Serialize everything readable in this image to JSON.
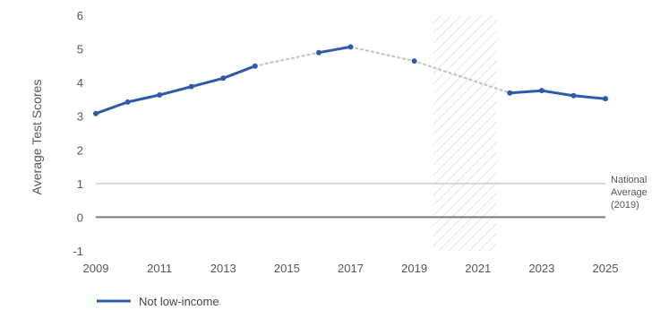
{
  "chart_data": {
    "type": "line",
    "ylabel": "Average Test Scores",
    "xlim": [
      2009,
      2025
    ],
    "ylim": [
      -1,
      6
    ],
    "x_ticks": [
      "2009",
      "2011",
      "2013",
      "2015",
      "2017",
      "2019",
      "2021",
      "2023",
      "2025"
    ],
    "y_ticks": [
      "6",
      "5",
      "4",
      "3",
      "2",
      "1",
      "0",
      "-1"
    ],
    "grid": false,
    "legend_position": "bottom-left",
    "series": [
      {
        "name": "Not low-income",
        "color": "#2e5aa8",
        "points": [
          {
            "x": 2009,
            "y": 3.08
          },
          {
            "x": 2010,
            "y": 3.42
          },
          {
            "x": 2011,
            "y": 3.63
          },
          {
            "x": 2012,
            "y": 3.88
          },
          {
            "x": 2013,
            "y": 4.13
          },
          {
            "x": 2014,
            "y": 4.49
          },
          {
            "x": 2016,
            "y": 4.89
          },
          {
            "x": 2017,
            "y": 5.06
          },
          {
            "x": 2019,
            "y": 4.64
          },
          {
            "x": 2022,
            "y": 3.69
          },
          {
            "x": 2023,
            "y": 3.76
          },
          {
            "x": 2024,
            "y": 3.61
          },
          {
            "x": 2025,
            "y": 3.52
          }
        ],
        "solid_segments": [
          [
            0,
            5
          ],
          [
            6,
            7
          ],
          [
            9,
            12
          ]
        ],
        "dotted_segments": [
          [
            5,
            6
          ],
          [
            7,
            9
          ]
        ]
      }
    ],
    "reference_lines": [
      {
        "y": 1,
        "label": "National Average (2019)",
        "label_lines": [
          "National",
          "Average",
          "(2019)"
        ],
        "color": "#d4d4d4"
      },
      {
        "y": 0,
        "label": "",
        "color": "#7a7a7a"
      }
    ],
    "shaded_region": {
      "x_start": 2019.6,
      "x_end": 2021.6,
      "pattern": "diagonal-hatch"
    }
  }
}
